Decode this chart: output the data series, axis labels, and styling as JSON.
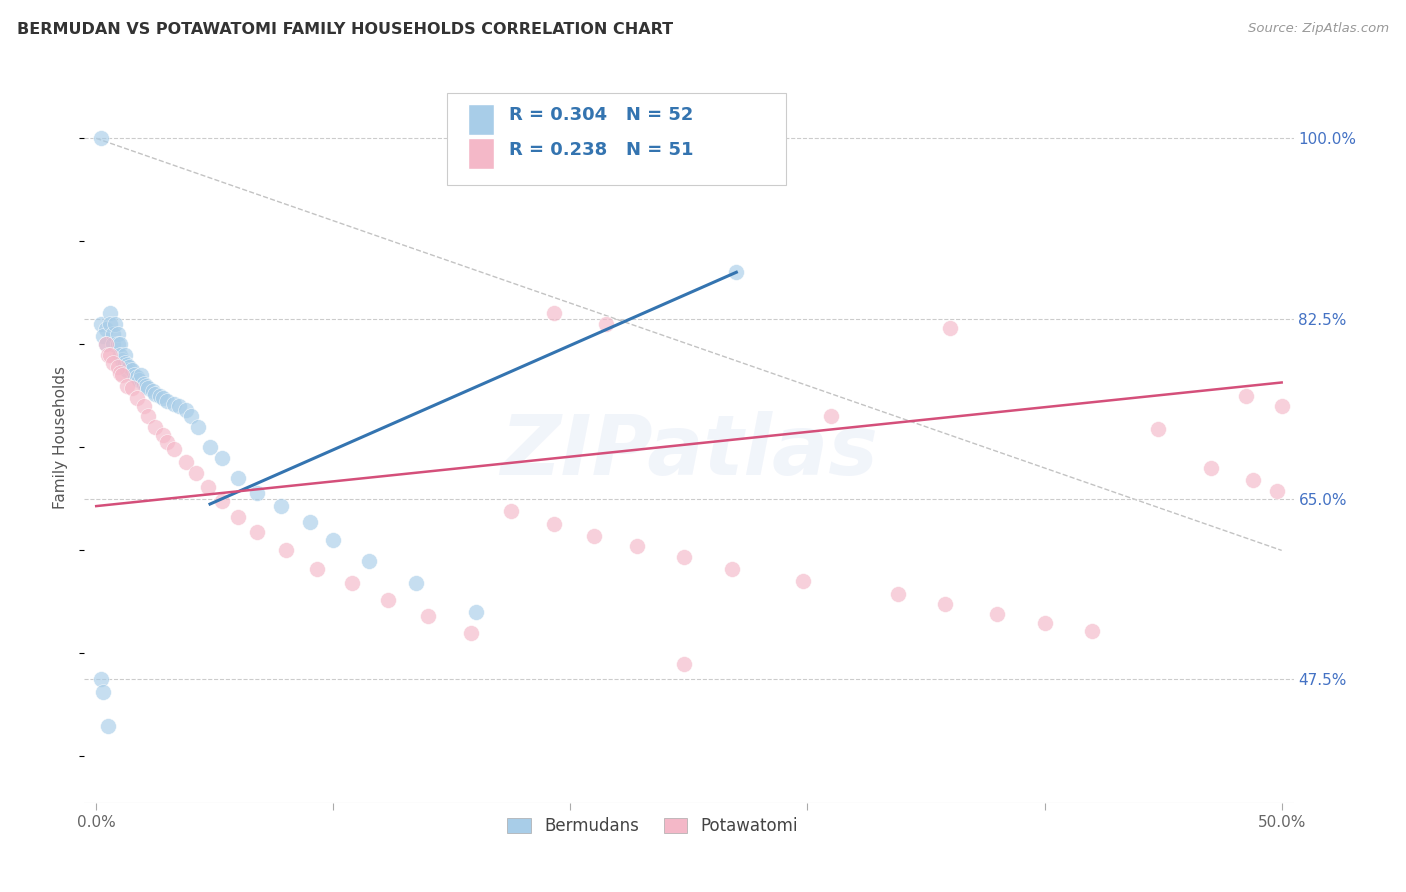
{
  "title": "BERMUDAN VS POTAWATOMI FAMILY HOUSEHOLDS CORRELATION CHART",
  "source": "Source: ZipAtlas.com",
  "ylabel": "Family Households",
  "xlim": [
    -0.005,
    0.505
  ],
  "ylim": [
    0.355,
    1.065
  ],
  "ytick_positions": [
    0.475,
    0.65,
    0.825,
    1.0
  ],
  "ytick_labels": [
    "47.5%",
    "65.0%",
    "82.5%",
    "100.0%"
  ],
  "xtick_positions": [
    0.0,
    0.1,
    0.2,
    0.3,
    0.4,
    0.5
  ],
  "xtick_labels": [
    "0.0%",
    "",
    "",
    "",
    "",
    "50.0%"
  ],
  "bermudans_R": 0.304,
  "bermudans_N": 52,
  "potawatomi_R": 0.238,
  "potawatomi_N": 51,
  "blue_scatter_color": "#a8cde8",
  "pink_scatter_color": "#f4b8c8",
  "blue_line_color": "#3474b0",
  "pink_line_color": "#d44f7a",
  "legend_text_color": "#3474b0",
  "watermark": "ZIPatlas",
  "blue_line_x0": 0.048,
  "blue_line_y0": 0.645,
  "blue_line_x1": 0.27,
  "blue_line_y1": 0.87,
  "pink_line_x0": 0.0,
  "pink_line_y0": 0.643,
  "pink_line_x1": 0.5,
  "pink_line_y1": 0.763,
  "dash_line_x0": 0.0,
  "dash_line_y0": 1.0,
  "dash_line_x1": 0.5,
  "dash_line_y1": 0.6,
  "bx": [
    0.002,
    0.002,
    0.004,
    0.003,
    0.004,
    0.006,
    0.006,
    0.007,
    0.007,
    0.008,
    0.009,
    0.009,
    0.01,
    0.01,
    0.011,
    0.012,
    0.012,
    0.013,
    0.013,
    0.014,
    0.015,
    0.016,
    0.017,
    0.018,
    0.019,
    0.02,
    0.021,
    0.022,
    0.024,
    0.025,
    0.027,
    0.028,
    0.03,
    0.033,
    0.035,
    0.038,
    0.04,
    0.043,
    0.048,
    0.053,
    0.06,
    0.068,
    0.078,
    0.09,
    0.1,
    0.115,
    0.135,
    0.16,
    0.27,
    0.002,
    0.003,
    0.005
  ],
  "by": [
    1.0,
    0.82,
    0.815,
    0.808,
    0.8,
    0.83,
    0.82,
    0.81,
    0.8,
    0.82,
    0.81,
    0.8,
    0.8,
    0.79,
    0.785,
    0.79,
    0.782,
    0.78,
    0.775,
    0.778,
    0.775,
    0.77,
    0.768,
    0.765,
    0.77,
    0.762,
    0.76,
    0.758,
    0.755,
    0.752,
    0.75,
    0.748,
    0.745,
    0.742,
    0.74,
    0.736,
    0.73,
    0.72,
    0.7,
    0.69,
    0.67,
    0.656,
    0.643,
    0.628,
    0.61,
    0.59,
    0.568,
    0.54,
    0.87,
    0.475,
    0.463,
    0.43
  ],
  "px": [
    0.004,
    0.005,
    0.006,
    0.007,
    0.009,
    0.01,
    0.011,
    0.013,
    0.015,
    0.017,
    0.02,
    0.022,
    0.025,
    0.028,
    0.03,
    0.033,
    0.038,
    0.042,
    0.047,
    0.053,
    0.06,
    0.068,
    0.08,
    0.093,
    0.108,
    0.123,
    0.14,
    0.158,
    0.175,
    0.193,
    0.21,
    0.228,
    0.248,
    0.268,
    0.298,
    0.338,
    0.358,
    0.38,
    0.4,
    0.42,
    0.448,
    0.47,
    0.488,
    0.498,
    0.193,
    0.215,
    0.31,
    0.36,
    0.485,
    0.5,
    0.248
  ],
  "py": [
    0.8,
    0.79,
    0.79,
    0.782,
    0.778,
    0.772,
    0.77,
    0.76,
    0.758,
    0.748,
    0.74,
    0.73,
    0.72,
    0.712,
    0.705,
    0.698,
    0.686,
    0.675,
    0.662,
    0.648,
    0.632,
    0.618,
    0.6,
    0.582,
    0.568,
    0.552,
    0.536,
    0.52,
    0.638,
    0.626,
    0.614,
    0.604,
    0.594,
    0.582,
    0.57,
    0.558,
    0.548,
    0.538,
    0.53,
    0.522,
    0.718,
    0.68,
    0.668,
    0.658,
    0.83,
    0.82,
    0.73,
    0.816,
    0.75,
    0.74,
    0.49
  ]
}
